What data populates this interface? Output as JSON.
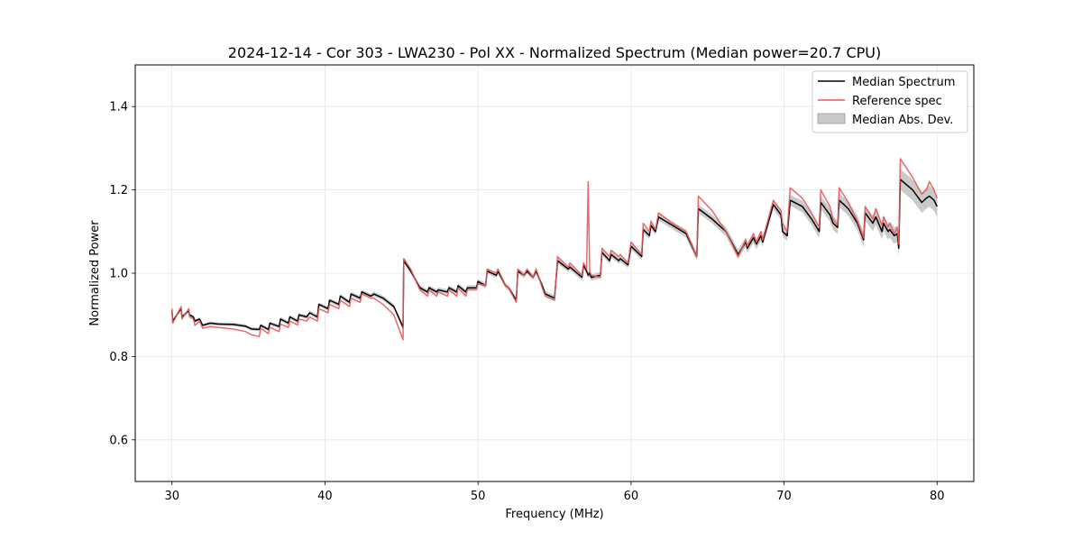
{
  "chart_data": {
    "type": "line",
    "title": "2024-12-14 - Cor 303 - LWA230 - Pol XX - Normalized Spectrum (Median power=20.7 CPU)",
    "xlabel": "Frequency (MHz)",
    "ylabel": "Normalized Power",
    "xlim": [
      27.6,
      82.4
    ],
    "ylim": [
      0.5,
      1.5
    ],
    "xticks": [
      30,
      40,
      50,
      60,
      70,
      80
    ],
    "yticks": [
      0.6,
      0.8,
      1.0,
      1.2,
      1.4
    ],
    "xtick_labels": [
      "30",
      "40",
      "50",
      "60",
      "70",
      "80"
    ],
    "ytick_labels": [
      "0.6",
      "0.8",
      "1.0",
      "1.2",
      "1.4"
    ],
    "grid": true,
    "legend_position": "top-right",
    "colors": {
      "median": "#000000",
      "reference": "#e8585a",
      "mad_fill": "#bdbdbd"
    },
    "series": [
      {
        "name": "Median Spectrum",
        "x": [
          30.0,
          30.05,
          30.6,
          30.65,
          31.1,
          31.15,
          31.4,
          31.5,
          31.8,
          32.0,
          32.5,
          33.0,
          34.0,
          34.8,
          35.2,
          35.7,
          35.8,
          36.3,
          36.4,
          37.0,
          37.1,
          37.6,
          37.7,
          38.2,
          38.3,
          38.8,
          39.0,
          39.5,
          39.6,
          40.2,
          40.3,
          40.9,
          41.0,
          41.6,
          41.7,
          42.3,
          42.4,
          43.0,
          43.2,
          43.8,
          44.5,
          45.1,
          45.15,
          45.6,
          46.2,
          46.7,
          46.8,
          47.3,
          47.4,
          48.0,
          48.1,
          48.6,
          48.7,
          49.2,
          49.3,
          49.9,
          50.0,
          50.5,
          50.6,
          51.2,
          51.3,
          51.8,
          52.0,
          52.5,
          52.6,
          53.0,
          53.2,
          53.6,
          53.8,
          54.2,
          54.4,
          55.0,
          55.2,
          55.9,
          56.0,
          56.8,
          56.9,
          57.1,
          57.2,
          57.3,
          57.4,
          58.0,
          58.1,
          58.6,
          58.7,
          59.2,
          59.3,
          59.8,
          60.0,
          60.7,
          60.8,
          61.2,
          61.3,
          61.6,
          61.8,
          62.7,
          63.6,
          64.3,
          64.4,
          65.3,
          66.2,
          67.0,
          67.5,
          67.6,
          68.0,
          68.2,
          68.5,
          68.6,
          69.3,
          69.8,
          69.9,
          70.2,
          70.4,
          71.2,
          71.8,
          72.3,
          72.4,
          73.0,
          73.2,
          73.5,
          73.6,
          74.2,
          74.8,
          75.2,
          75.3,
          75.8,
          76.0,
          76.4,
          76.5,
          76.8,
          76.9,
          77.2,
          77.4,
          77.5,
          77.6,
          78.4,
          79.0,
          79.3,
          79.5,
          79.8,
          80.0
        ],
        "values": [
          0.91,
          0.885,
          0.915,
          0.895,
          0.91,
          0.9,
          0.895,
          0.885,
          0.89,
          0.875,
          0.88,
          0.878,
          0.877,
          0.873,
          0.866,
          0.865,
          0.875,
          0.865,
          0.88,
          0.872,
          0.89,
          0.88,
          0.895,
          0.885,
          0.9,
          0.895,
          0.905,
          0.895,
          0.925,
          0.915,
          0.935,
          0.925,
          0.945,
          0.93,
          0.95,
          0.94,
          0.955,
          0.945,
          0.95,
          0.94,
          0.92,
          0.87,
          1.03,
          1.005,
          0.965,
          0.955,
          0.965,
          0.955,
          0.96,
          0.955,
          0.965,
          0.955,
          0.97,
          0.955,
          0.965,
          0.965,
          0.98,
          0.97,
          1.005,
          0.995,
          1.005,
          0.97,
          0.965,
          0.935,
          1.005,
          0.995,
          1.005,
          0.99,
          1.005,
          0.97,
          0.95,
          0.94,
          1.03,
          1.01,
          1.015,
          0.99,
          1.02,
          1.005,
          0.995,
          1.0,
          0.99,
          0.995,
          1.05,
          1.03,
          1.045,
          1.03,
          1.035,
          1.02,
          1.065,
          1.04,
          1.105,
          1.09,
          1.115,
          1.1,
          1.135,
          1.115,
          1.095,
          1.04,
          1.155,
          1.13,
          1.1,
          1.045,
          1.075,
          1.06,
          1.085,
          1.07,
          1.09,
          1.075,
          1.165,
          1.14,
          1.1,
          1.09,
          1.175,
          1.16,
          1.13,
          1.1,
          1.17,
          1.14,
          1.12,
          1.11,
          1.175,
          1.155,
          1.12,
          1.08,
          1.145,
          1.12,
          1.135,
          1.1,
          1.12,
          1.1,
          1.105,
          1.09,
          1.095,
          1.06,
          1.225,
          1.2,
          1.17,
          1.18,
          1.185,
          1.175,
          1.16
        ]
      },
      {
        "name": "Reference spec",
        "x": [
          30.0,
          30.05,
          30.6,
          30.65,
          31.1,
          31.15,
          31.4,
          31.5,
          31.8,
          32.0,
          32.5,
          33.0,
          34.0,
          34.8,
          35.2,
          35.7,
          35.8,
          36.3,
          36.4,
          37.0,
          37.1,
          37.6,
          37.7,
          38.2,
          38.3,
          38.8,
          39.0,
          39.5,
          39.6,
          40.2,
          40.3,
          40.9,
          41.0,
          41.6,
          41.7,
          42.3,
          42.4,
          43.0,
          43.2,
          43.8,
          44.5,
          45.1,
          45.15,
          45.6,
          46.2,
          46.7,
          46.8,
          47.3,
          47.4,
          48.0,
          48.1,
          48.6,
          48.7,
          49.2,
          49.3,
          49.9,
          50.0,
          50.5,
          50.6,
          51.2,
          51.3,
          51.8,
          52.0,
          52.5,
          52.6,
          53.0,
          53.2,
          53.6,
          53.8,
          54.2,
          54.4,
          55.0,
          55.2,
          55.9,
          56.0,
          56.8,
          56.9,
          57.1,
          57.2,
          57.3,
          57.4,
          58.0,
          58.1,
          58.6,
          58.7,
          59.2,
          59.3,
          59.8,
          60.0,
          60.7,
          60.8,
          61.2,
          61.3,
          61.6,
          61.8,
          62.7,
          63.6,
          64.3,
          64.4,
          65.3,
          66.2,
          67.0,
          67.5,
          67.6,
          68.0,
          68.2,
          68.5,
          68.6,
          69.3,
          69.8,
          69.9,
          70.2,
          70.4,
          71.2,
          71.8,
          72.3,
          72.4,
          73.0,
          73.2,
          73.5,
          73.6,
          74.2,
          74.8,
          75.2,
          75.3,
          75.8,
          76.0,
          76.4,
          76.5,
          76.8,
          76.9,
          77.2,
          77.4,
          77.5,
          77.6,
          78.4,
          79.0,
          79.3,
          79.5,
          79.8,
          80.0
        ],
        "values": [
          0.915,
          0.88,
          0.92,
          0.89,
          0.915,
          0.895,
          0.89,
          0.875,
          0.885,
          0.868,
          0.872,
          0.87,
          0.866,
          0.86,
          0.852,
          0.848,
          0.868,
          0.855,
          0.87,
          0.86,
          0.878,
          0.87,
          0.885,
          0.876,
          0.89,
          0.885,
          0.895,
          0.885,
          0.915,
          0.905,
          0.925,
          0.915,
          0.935,
          0.92,
          0.94,
          0.93,
          0.95,
          0.94,
          0.94,
          0.925,
          0.9,
          0.84,
          1.035,
          1.01,
          0.96,
          0.945,
          0.96,
          0.945,
          0.955,
          0.945,
          0.96,
          0.945,
          0.965,
          0.945,
          0.96,
          0.96,
          0.975,
          0.97,
          1.01,
          1.0,
          1.01,
          0.97,
          0.965,
          0.93,
          1.01,
          0.995,
          1.01,
          0.99,
          1.01,
          0.965,
          0.945,
          0.935,
          1.04,
          1.015,
          1.025,
          0.995,
          1.025,
          1.01,
          1.22,
          1.005,
          0.995,
          0.99,
          1.06,
          1.04,
          1.055,
          1.04,
          1.045,
          1.025,
          1.075,
          1.045,
          1.12,
          1.1,
          1.125,
          1.105,
          1.145,
          1.12,
          1.1,
          1.04,
          1.185,
          1.15,
          1.1,
          1.04,
          1.08,
          1.065,
          1.095,
          1.075,
          1.1,
          1.08,
          1.175,
          1.15,
          1.12,
          1.1,
          1.205,
          1.18,
          1.145,
          1.11,
          1.2,
          1.16,
          1.13,
          1.115,
          1.205,
          1.17,
          1.125,
          1.085,
          1.16,
          1.13,
          1.155,
          1.115,
          1.135,
          1.11,
          1.12,
          1.095,
          1.11,
          1.07,
          1.275,
          1.23,
          1.19,
          1.2,
          1.22,
          1.2,
          1.18
        ]
      }
    ],
    "mad_band": {
      "name": "Median Abs. Dev.",
      "x": [
        30.0,
        35.0,
        40.0,
        45.0,
        45.15,
        50.0,
        55.0,
        60.0,
        64.3,
        64.4,
        68.0,
        70.0,
        72.0,
        75.0,
        77.5,
        77.6,
        80.0
      ],
      "halfwidth": [
        0.004,
        0.004,
        0.005,
        0.006,
        0.006,
        0.006,
        0.007,
        0.008,
        0.01,
        0.01,
        0.012,
        0.012,
        0.015,
        0.018,
        0.02,
        0.025,
        0.025
      ]
    }
  }
}
